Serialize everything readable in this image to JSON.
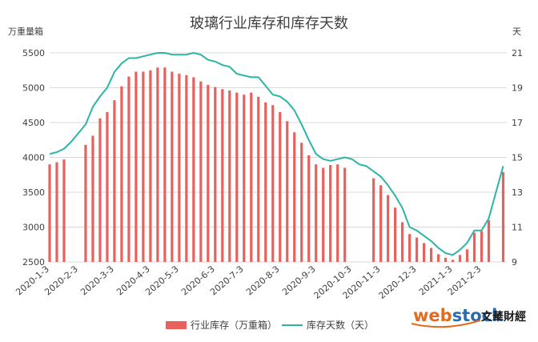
{
  "chart_data": {
    "type": "bar+line",
    "title": "玻璃行业库存和库存天数",
    "left_unit": "万重量箱",
    "right_unit": "天",
    "left_ylim": [
      2500,
      5500
    ],
    "left_ticks": [
      2500,
      3000,
      3500,
      4000,
      4500,
      5000,
      5500
    ],
    "right_ylim": [
      9,
      21
    ],
    "right_ticks": [
      9,
      11,
      13,
      15,
      17,
      19,
      21
    ],
    "x_tick_labels": [
      "2020-1-3",
      "2020-2-3",
      "2020-3-3",
      "2020-4-3",
      "2020-5-3",
      "2020-6-3",
      "2020-7-3",
      "2020-8-3",
      "2020-9-3",
      "2020-10-3",
      "2020-11-3",
      "2020-12-3",
      "2021-1-3",
      "2021-2-3"
    ],
    "grid": "horizontal",
    "legend_position": "bottom",
    "colors": {
      "bar": "#e8615d",
      "line": "#2bb5a7",
      "grid": "#d9d9d9"
    },
    "series": [
      {
        "name": "行业库存（万重箱）",
        "kind": "bar",
        "values": [
          3900,
          3930,
          3970,
          null,
          null,
          4180,
          4310,
          4560,
          4650,
          4820,
          5020,
          5160,
          5230,
          5230,
          5250,
          5290,
          5290,
          5230,
          5200,
          5180,
          5150,
          5090,
          5040,
          5010,
          4980,
          4960,
          4930,
          4900,
          4930,
          4870,
          4790,
          4750,
          4650,
          4520,
          4360,
          4210,
          4030,
          3900,
          3850,
          3890,
          3900,
          3850,
          null,
          null,
          null,
          3700,
          3600,
          3460,
          3280,
          3070,
          2900,
          2850,
          2770,
          2700,
          2610,
          2560,
          2530,
          2600,
          2680,
          2920,
          2940,
          3100,
          null,
          3790
        ]
      },
      {
        "name": "库存天数（天）",
        "kind": "line",
        "values": [
          15.2,
          15.3,
          15.5,
          15.9,
          16.4,
          16.9,
          17.9,
          18.5,
          19.0,
          19.9,
          20.4,
          20.7,
          20.7,
          20.8,
          20.9,
          21.0,
          21.0,
          20.9,
          20.9,
          20.9,
          21.0,
          20.9,
          20.6,
          20.5,
          20.3,
          20.2,
          19.8,
          19.7,
          19.6,
          19.6,
          19.1,
          18.6,
          18.5,
          18.2,
          17.7,
          16.9,
          16.0,
          15.2,
          14.9,
          14.8,
          14.9,
          15.0,
          14.9,
          14.6,
          14.5,
          14.2,
          13.9,
          13.4,
          12.8,
          12.1,
          11.0,
          10.8,
          10.5,
          10.2,
          9.8,
          9.5,
          9.4,
          9.7,
          10.1,
          10.8,
          10.8,
          11.5,
          13.0,
          14.5
        ]
      }
    ],
    "watermark": {
      "brand": "webstock",
      "cn": "文華財經"
    }
  }
}
